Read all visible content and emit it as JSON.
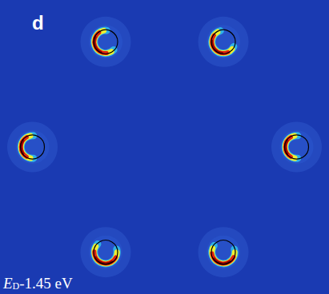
{
  "chart_data": {
    "type": "pockets",
    "title": "d",
    "annotation": {
      "symbol": "E",
      "subscript": "D",
      "text": "-1.45 eV"
    },
    "x": [
      -0.49,
      0.49,
      -1.1,
      1.1,
      -0.49,
      0.49
    ],
    "y": [
      0.88,
      0.88,
      0.0,
      0.0,
      -0.88,
      -0.88
    ],
    "radius": [
      0.1,
      0.1,
      0.1,
      0.1,
      0.1,
      0.1
    ],
    "arc_start": [
      100,
      120,
      100,
      100,
      150,
      160
    ],
    "arc_end": [
      300,
      320,
      260,
      260,
      360,
      360
    ],
    "xlim": [
      -1.37,
      1.37
    ],
    "ylim": [
      -1.23,
      1.23
    ],
    "tick_labels": false,
    "grid": false
  }
}
